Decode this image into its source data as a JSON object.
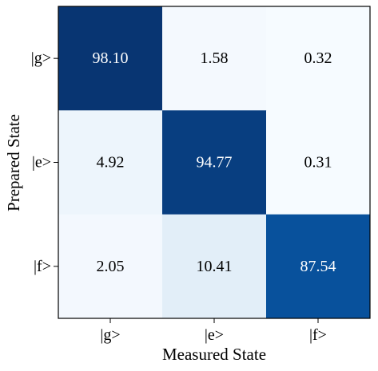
{
  "chart_data": {
    "type": "heatmap",
    "title": "",
    "xlabel": "Measured State",
    "ylabel": "Prepared State",
    "x_categories": [
      "|g>",
      "|e>",
      "|f>"
    ],
    "y_categories": [
      "|g>",
      "|e>",
      "|f>"
    ],
    "values": [
      [
        98.1,
        1.58,
        0.32
      ],
      [
        4.92,
        94.77,
        0.31
      ],
      [
        2.05,
        10.41,
        87.54
      ]
    ],
    "value_labels": [
      [
        "98.10",
        "1.58",
        "0.32"
      ],
      [
        "4.92",
        "94.77",
        "0.31"
      ],
      [
        "2.05",
        "10.41",
        "87.54"
      ]
    ],
    "vrange": [
      0,
      100
    ],
    "colormap": "Blues",
    "colors": {
      "low": "#f7fbff",
      "high": "#08306b",
      "light_text": "#ffffff",
      "dark_text": "#000000",
      "frame": "#000000"
    },
    "grid": false,
    "legend": "none"
  }
}
